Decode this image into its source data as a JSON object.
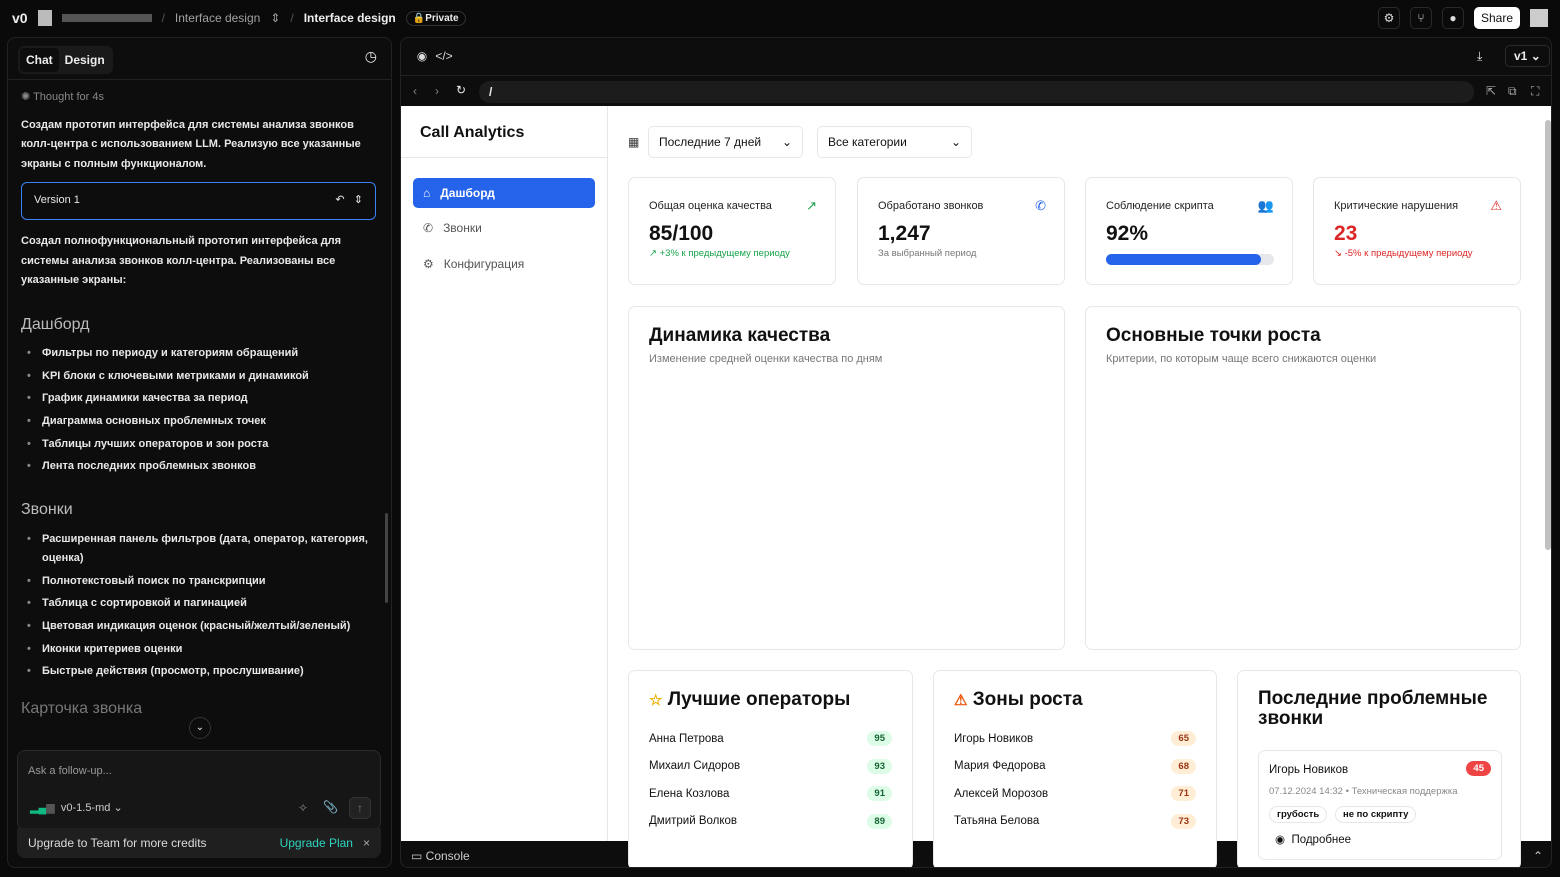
{
  "topbar": {
    "crumb1": "Interface design",
    "crumb2": "Interface design",
    "private": "Private",
    "share": "Share"
  },
  "left": {
    "tabs": [
      "Chat",
      "Design"
    ],
    "thought": "Thought for 4s",
    "intro": "Создам прототип интерфейса для системы анализа звонков колл-центра с использованием LLM. Реализую все указанные экраны с полным функционалом.",
    "version": "Version 1",
    "summary": "Создал полнофункциональный прототип интерфейса для системы анализа звонков колл-центра. Реализованы все указанные экраны:",
    "sections": [
      {
        "title": "Дашборд",
        "items": [
          "Фильтры по периоду и категориям обращений",
          "KPI блоки с ключевыми метриками и динамикой",
          "График динамики качества за период",
          "Диаграмма основных проблемных точек",
          "Таблицы лучших операторов и зон роста",
          "Лента последних проблемных звонков"
        ]
      },
      {
        "title": "Звонки",
        "items": [
          "Расширенная панель фильтров (дата, оператор, категория, оценка)",
          "Полнотекстовый поиск по транскрипции",
          "Таблица с сортировкой и пагинацией",
          "Цветовая индикация оценок (красный/желтый/зеленый)",
          "Иконки критериев оценки",
          "Быстрые действия (просмотр, прослушивание)"
        ]
      }
    ],
    "next_section": "Карточка звонка",
    "input_placeholder": "Ask a follow-up...",
    "model": "v0-1.5-md",
    "upgrade_text": "Upgrade to Team for more credits",
    "upgrade_link": "Upgrade Plan"
  },
  "preview": {
    "version": "v1",
    "url": "/",
    "console": "Console",
    "app_title": "Call Analytics",
    "nav": [
      "Дашборд",
      "Звонки",
      "Конфигурация"
    ],
    "filters": {
      "period": "Последние 7 дней",
      "category": "Все категории"
    },
    "kpis": [
      {
        "title": "Общая оценка качества",
        "value": "85/100",
        "sub": "+3% к предыдущему периоду",
        "color": "#16a34a"
      },
      {
        "title": "Обработано звонков",
        "value": "1,247",
        "sub": "За выбранный период",
        "color": "#2563eb"
      },
      {
        "title": "Соблюдение скрипта",
        "value": "92%",
        "progress": 92,
        "color": "#a855f7"
      },
      {
        "title": "Критические нарушения",
        "value": "23",
        "sub": "-5% к предыдущему периоду",
        "color": "#dc2626"
      }
    ],
    "charts": [
      {
        "title": "Динамика качества",
        "subtitle": "Изменение средней оценки качества по дням"
      },
      {
        "title": "Основные точки роста",
        "subtitle": "Критерии, по которым чаще всего снижаются оценки"
      }
    ],
    "top_operators": {
      "title": "Лучшие операторы",
      "rows": [
        {
          "name": "Анна Петрова",
          "score": "95"
        },
        {
          "name": "Михаил Сидоров",
          "score": "93"
        },
        {
          "name": "Елена Козлова",
          "score": "91"
        },
        {
          "name": "Дмитрий Волков",
          "score": "89"
        }
      ]
    },
    "growth": {
      "title": "Зоны роста",
      "rows": [
        {
          "name": "Игорь Новиков",
          "score": "65"
        },
        {
          "name": "Мария Федорова",
          "score": "68"
        },
        {
          "name": "Алексей Морозов",
          "score": "71"
        },
        {
          "name": "Татьяна Белова",
          "score": "73"
        }
      ]
    },
    "recent": {
      "title": "Последние проблемные звонки",
      "call": {
        "name": "Игорь Новиков",
        "score": "45",
        "meta": "07.12.2024 14:32 • Техническая поддержка",
        "tags": [
          "грубость",
          "не по скрипту"
        ],
        "details": "Подробнее"
      }
    }
  }
}
